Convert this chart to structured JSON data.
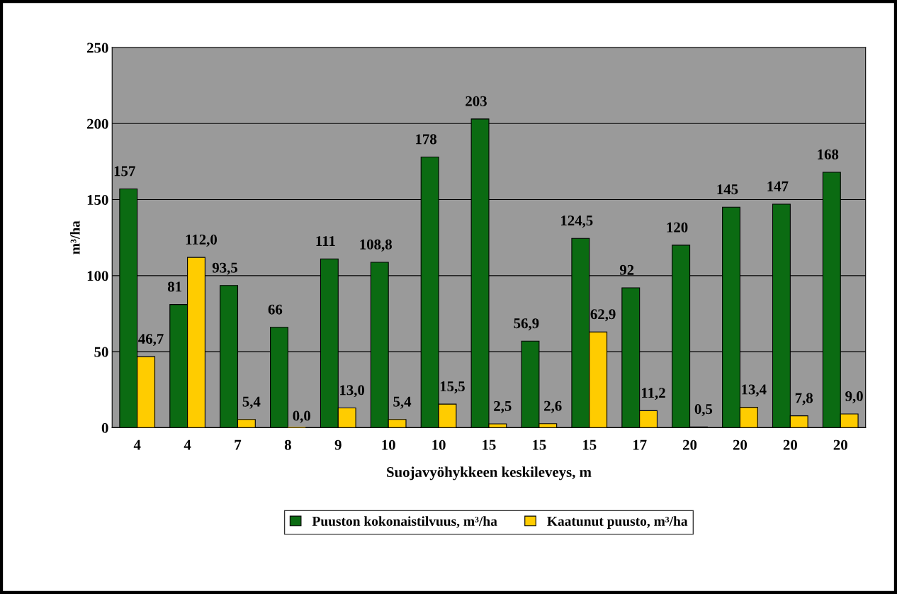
{
  "chart_data": {
    "type": "bar",
    "xlabel": "Suojavyöhykkeen keskileveys, m",
    "ylabel": "m³/ha",
    "categories": [
      "4",
      "4",
      "7",
      "8",
      "9",
      "10",
      "10",
      "15",
      "15",
      "15",
      "17",
      "20",
      "20",
      "20",
      "20"
    ],
    "series": [
      {
        "name": "Puuston kokonaistilvuus, m³/ha",
        "color": "#0b6b12",
        "values": [
          157,
          81,
          93.5,
          66,
          111,
          108.8,
          178,
          203,
          56.9,
          124.5,
          92,
          120,
          145,
          147,
          168
        ],
        "value_labels": [
          "157",
          "81",
          "93,5",
          "66",
          "111",
          "108,8",
          "178",
          "203",
          "56,9",
          "124,5",
          "92",
          "120",
          "145",
          "147",
          "168"
        ]
      },
      {
        "name": "Kaatunut puusto, m³/ha",
        "color": "#ffcc00",
        "values": [
          46.7,
          112.0,
          5.4,
          0.0,
          13.0,
          5.4,
          15.5,
          2.5,
          2.6,
          62.9,
          11.2,
          0.5,
          13.4,
          7.8,
          9.0
        ],
        "value_labels": [
          "46,7",
          "112,0",
          "5,4",
          "0,0",
          "13,0",
          "5,4",
          "15,5",
          "2,5",
          "2,6",
          "62,9",
          "11,2",
          "0,5",
          "13,4",
          "7,8",
          "9,0"
        ]
      }
    ],
    "ylim": [
      0,
      250
    ],
    "yticks": [
      0,
      50,
      100,
      150,
      200,
      250
    ],
    "grid": "y",
    "legend": "bottom"
  }
}
